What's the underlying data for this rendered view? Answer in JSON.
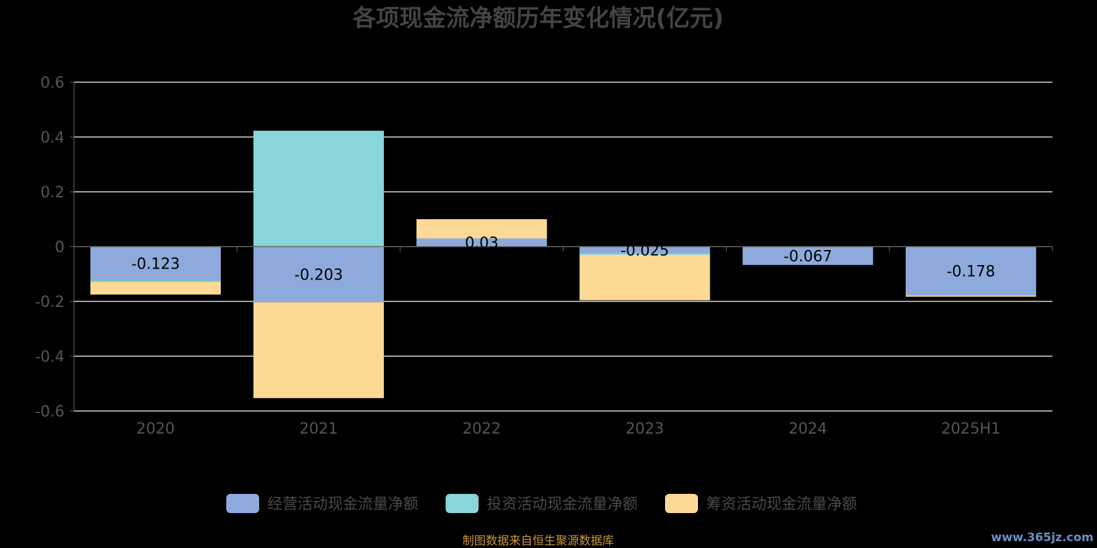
{
  "chart_data": {
    "type": "bar",
    "stacked": true,
    "title": "各项现金流净额历年变化情况(亿元)",
    "categories": [
      "2020",
      "2021",
      "2022",
      "2023",
      "2024",
      "2025H1"
    ],
    "series": [
      {
        "name": "经营活动现金流量净额",
        "color": "#8eaadc",
        "values": [
          -0.123,
          -0.203,
          0.03,
          -0.025,
          -0.067,
          -0.178
        ],
        "labels": [
          "-0.123",
          "-0.203",
          "0.03",
          "-0.025",
          "-0.067",
          "-0.178"
        ]
      },
      {
        "name": "投资活动现金流量净额",
        "color": "#88d6d9",
        "values": [
          -0.005,
          0.423,
          0.0,
          -0.005,
          0.0,
          0.0
        ]
      },
      {
        "name": "筹资活动现金流量净额",
        "color": "#fdd996",
        "values": [
          -0.047,
          -0.35,
          0.07,
          -0.166,
          0.0,
          -0.005
        ]
      }
    ],
    "yticks": [
      "0.6",
      "0.4",
      "0.2",
      "0",
      "-0.2",
      "-0.4",
      "-0.6"
    ],
    "ylim": [
      -0.6,
      0.6
    ],
    "grid": true,
    "legend_position": "bottom"
  },
  "footer": {
    "source": "制图数据来自恒生聚源数据库",
    "watermark": "www.365jz.com"
  }
}
